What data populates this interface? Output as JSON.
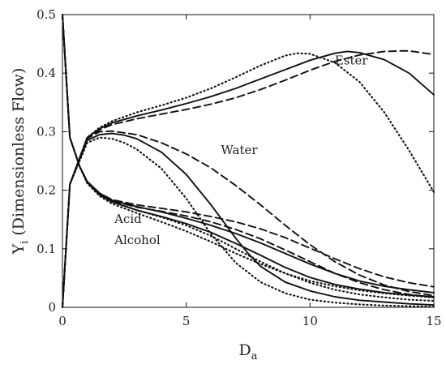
{
  "chart_data": {
    "type": "line",
    "xlabel": {
      "main": "D",
      "sub": "a"
    },
    "ylabel": {
      "main": "Y",
      "sub": "i",
      "rest": " (Dimensionless Flow)"
    },
    "xlim": [
      0,
      15
    ],
    "ylim": [
      0,
      0.5
    ],
    "xticks": [
      0,
      5,
      10,
      15
    ],
    "yticks": [
      0,
      0.1,
      0.2,
      0.3,
      0.4,
      0.5
    ],
    "grid": false,
    "annotations": [
      {
        "text": "Ester",
        "x": 11.0,
        "y": 0.415
      },
      {
        "text": "Water",
        "x": 6.4,
        "y": 0.262
      },
      {
        "text": "Acid",
        "x": 2.1,
        "y": 0.144
      },
      {
        "text": "Alcohol",
        "x": 2.1,
        "y": 0.108
      }
    ],
    "series": [
      {
        "group": "ester",
        "dash": "solid",
        "x": [
          0,
          0.3,
          1,
          1.5,
          2,
          3,
          4,
          5,
          6,
          7,
          8,
          9,
          10,
          11,
          11.5,
          12,
          13,
          14,
          15
        ],
        "y": [
          0,
          0.21,
          0.29,
          0.305,
          0.315,
          0.327,
          0.337,
          0.348,
          0.36,
          0.374,
          0.39,
          0.406,
          0.422,
          0.434,
          0.437,
          0.435,
          0.423,
          0.4,
          0.363
        ]
      },
      {
        "group": "ester",
        "dash": "dashed",
        "x": [
          0,
          0.3,
          1,
          1.5,
          2,
          3,
          4,
          5,
          6,
          7,
          8,
          9,
          10,
          11,
          12,
          13,
          13.7,
          14,
          15
        ],
        "y": [
          0,
          0.21,
          0.289,
          0.303,
          0.312,
          0.322,
          0.33,
          0.338,
          0.347,
          0.358,
          0.372,
          0.388,
          0.405,
          0.42,
          0.431,
          0.437,
          0.438,
          0.438,
          0.432
        ]
      },
      {
        "group": "ester",
        "dash": "dotted",
        "x": [
          0,
          0.3,
          1,
          1.5,
          2,
          3,
          4,
          5,
          6,
          7,
          8,
          9,
          9.5,
          10,
          11,
          12,
          13,
          14,
          15
        ],
        "y": [
          0,
          0.21,
          0.29,
          0.307,
          0.318,
          0.333,
          0.345,
          0.358,
          0.374,
          0.393,
          0.413,
          0.43,
          0.434,
          0.433,
          0.418,
          0.385,
          0.333,
          0.268,
          0.197
        ]
      },
      {
        "group": "water",
        "dash": "solid",
        "x": [
          0,
          0.3,
          1,
          1.5,
          2,
          2.5,
          3,
          4,
          5,
          6,
          7,
          7.5,
          8,
          9,
          10,
          11,
          12,
          13,
          14,
          15
        ],
        "y": [
          0,
          0.21,
          0.285,
          0.295,
          0.297,
          0.294,
          0.288,
          0.265,
          0.227,
          0.175,
          0.118,
          0.092,
          0.07,
          0.043,
          0.028,
          0.018,
          0.012,
          0.009,
          0.006,
          0.004
        ]
      },
      {
        "group": "water",
        "dash": "dashed",
        "x": [
          0,
          0.3,
          1,
          1.5,
          2,
          3,
          4,
          5,
          6,
          7,
          8,
          9,
          10,
          11,
          12,
          13,
          14,
          15
        ],
        "y": [
          0,
          0.21,
          0.288,
          0.3,
          0.301,
          0.295,
          0.281,
          0.262,
          0.238,
          0.208,
          0.175,
          0.14,
          0.107,
          0.078,
          0.055,
          0.038,
          0.027,
          0.02
        ]
      },
      {
        "group": "water",
        "dash": "dotted",
        "x": [
          0,
          0.3,
          1,
          1.5,
          2,
          2.5,
          3,
          4,
          5,
          6,
          7,
          8,
          9,
          10,
          11,
          12,
          13,
          14,
          15
        ],
        "y": [
          0,
          0.21,
          0.281,
          0.29,
          0.288,
          0.281,
          0.27,
          0.237,
          0.186,
          0.125,
          0.076,
          0.043,
          0.024,
          0.013,
          0.008,
          0.005,
          0.003,
          0.002,
          0.001
        ]
      },
      {
        "group": "acid",
        "dash": "solid",
        "x": [
          0,
          0.3,
          0.7,
          1,
          1.5,
          2,
          3,
          4,
          5,
          6,
          7,
          8,
          9,
          10,
          11,
          12,
          13,
          14,
          15
        ],
        "y": [
          0.5,
          0.29,
          0.24,
          0.215,
          0.195,
          0.183,
          0.172,
          0.163,
          0.152,
          0.14,
          0.126,
          0.11,
          0.092,
          0.074,
          0.058,
          0.045,
          0.036,
          0.03,
          0.025
        ]
      },
      {
        "group": "acid",
        "dash": "dashed",
        "x": [
          0,
          0.3,
          0.7,
          1,
          1.5,
          2,
          3,
          4,
          5,
          6,
          7,
          8,
          9,
          10,
          11,
          12,
          13,
          14,
          15
        ],
        "y": [
          0.5,
          0.29,
          0.24,
          0.215,
          0.195,
          0.184,
          0.175,
          0.169,
          0.163,
          0.155,
          0.146,
          0.134,
          0.119,
          0.101,
          0.083,
          0.066,
          0.052,
          0.042,
          0.035
        ]
      },
      {
        "group": "acid",
        "dash": "dotted",
        "x": [
          0,
          0.3,
          0.7,
          1,
          1.5,
          2,
          3,
          4,
          5,
          6,
          7,
          8,
          9,
          10,
          11,
          12,
          13,
          14,
          15
        ],
        "y": [
          0.5,
          0.29,
          0.24,
          0.214,
          0.193,
          0.181,
          0.166,
          0.154,
          0.14,
          0.122,
          0.1,
          0.078,
          0.058,
          0.042,
          0.03,
          0.022,
          0.017,
          0.013,
          0.011
        ]
      },
      {
        "group": "alcohol",
        "dash": "solid",
        "x": [
          0,
          0.3,
          0.7,
          1,
          1.5,
          2,
          3,
          4,
          5,
          6,
          7,
          8,
          9,
          10,
          11,
          12,
          13,
          14,
          15
        ],
        "y": [
          0.5,
          0.29,
          0.24,
          0.213,
          0.192,
          0.18,
          0.166,
          0.155,
          0.143,
          0.128,
          0.109,
          0.089,
          0.068,
          0.051,
          0.039,
          0.031,
          0.025,
          0.021,
          0.018
        ]
      },
      {
        "group": "alcohol",
        "dash": "dashed",
        "x": [
          0,
          0.3,
          0.7,
          1,
          1.5,
          2,
          3,
          4,
          5,
          6,
          7,
          8,
          9,
          10,
          11,
          12,
          13,
          14,
          15
        ],
        "y": [
          0.5,
          0.29,
          0.24,
          0.214,
          0.193,
          0.182,
          0.171,
          0.164,
          0.156,
          0.146,
          0.133,
          0.117,
          0.098,
          0.078,
          0.058,
          0.042,
          0.03,
          0.022,
          0.017
        ]
      },
      {
        "group": "alcohol",
        "dash": "dotted",
        "x": [
          0,
          0.3,
          0.7,
          1,
          1.5,
          2,
          3,
          4,
          5,
          6,
          7,
          8,
          9,
          10,
          11,
          12,
          13,
          14,
          15
        ],
        "y": [
          0.5,
          0.29,
          0.24,
          0.212,
          0.19,
          0.177,
          0.161,
          0.146,
          0.13,
          0.112,
          0.092,
          0.074,
          0.058,
          0.045,
          0.036,
          0.029,
          0.024,
          0.02,
          0.017
        ]
      }
    ]
  }
}
